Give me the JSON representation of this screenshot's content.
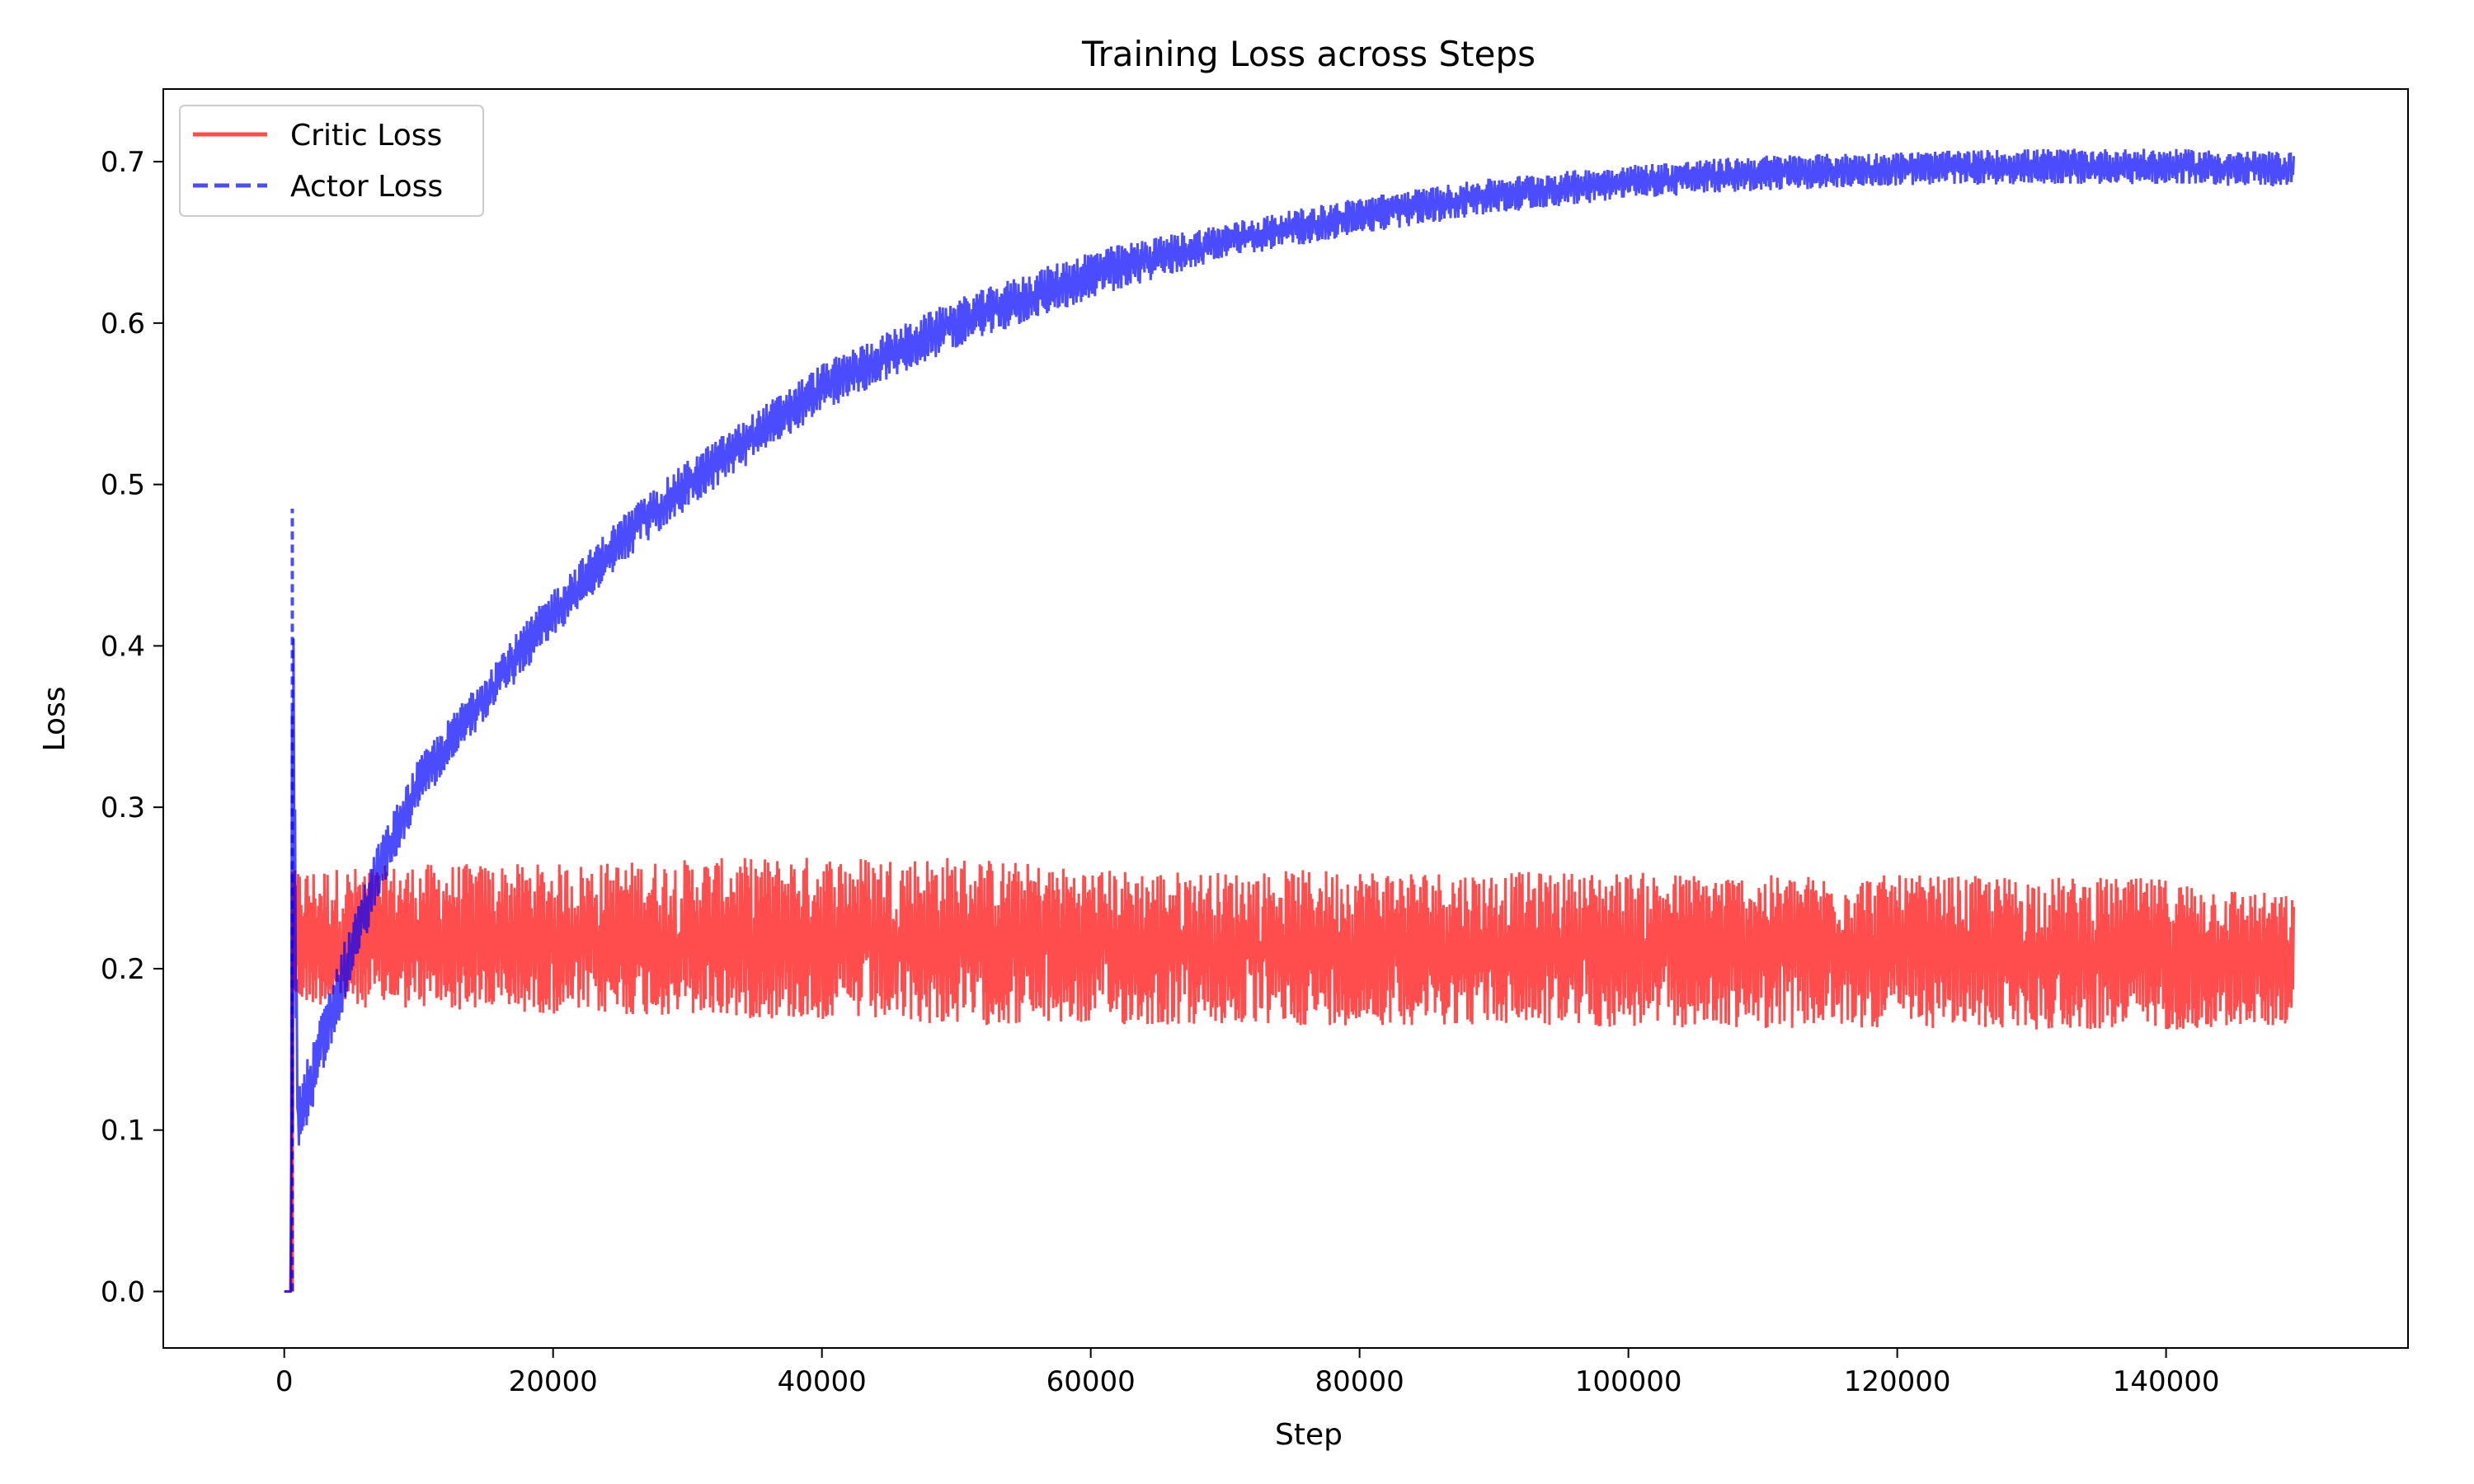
{
  "chart_data": {
    "type": "line",
    "title": "Training Loss across Steps",
    "xlabel": "Step",
    "ylabel": "Loss",
    "xlim": [
      -9000,
      158000
    ],
    "ylim": [
      -0.035,
      0.745
    ],
    "xticks": [
      0,
      20000,
      40000,
      60000,
      80000,
      100000,
      120000,
      140000
    ],
    "xtick_labels": [
      "0",
      "20000",
      "40000",
      "60000",
      "80000",
      "100000",
      "120000",
      "140000"
    ],
    "yticks": [
      0.0,
      0.1,
      0.2,
      0.3,
      0.4,
      0.5,
      0.6,
      0.7
    ],
    "ytick_labels": [
      "0.0",
      "0.1",
      "0.2",
      "0.3",
      "0.4",
      "0.5",
      "0.6",
      "0.7"
    ],
    "grid": false,
    "legend_position": "top-left",
    "series": [
      {
        "name": "Critic Loss",
        "color": "#ff0000",
        "opacity": 0.7,
        "style": "solid",
        "x": [
          0,
          500,
          600,
          1000,
          5000,
          10000,
          20000,
          30000,
          40000,
          50000,
          60000,
          70000,
          80000,
          90000,
          100000,
          110000,
          120000,
          130000,
          140000,
          149500
        ],
        "center": [
          0.0,
          0.0,
          0.21,
          0.215,
          0.215,
          0.216,
          0.215,
          0.217,
          0.216,
          0.215,
          0.214,
          0.213,
          0.213,
          0.212,
          0.212,
          0.211,
          0.211,
          0.21,
          0.21,
          0.205
        ],
        "low": [
          0.0,
          0.0,
          0.18,
          0.178,
          0.176,
          0.175,
          0.172,
          0.17,
          0.168,
          0.165,
          0.165,
          0.164,
          0.165,
          0.165,
          0.163,
          0.163,
          0.163,
          0.162,
          0.162,
          0.165
        ],
        "high": [
          0.0,
          0.0,
          0.26,
          0.262,
          0.263,
          0.265,
          0.265,
          0.268,
          0.27,
          0.27,
          0.262,
          0.26,
          0.262,
          0.26,
          0.26,
          0.258,
          0.258,
          0.257,
          0.256,
          0.245
        ]
      },
      {
        "name": "Actor Loss",
        "color": "#0000ff",
        "opacity": 0.7,
        "style": "dashed",
        "x": [
          0,
          500,
          600,
          1000,
          2000,
          3000,
          5000,
          7000,
          10000,
          15000,
          20000,
          25000,
          30000,
          40000,
          50000,
          60000,
          70000,
          80000,
          90000,
          100000,
          110000,
          120000,
          130000,
          140000,
          149500
        ],
        "center": [
          0.0,
          0.0,
          0.48,
          0.1,
          0.13,
          0.16,
          0.21,
          0.26,
          0.315,
          0.37,
          0.42,
          0.465,
          0.5,
          0.56,
          0.6,
          0.63,
          0.65,
          0.667,
          0.68,
          0.688,
          0.693,
          0.696,
          0.697,
          0.697,
          0.695
        ],
        "low": [
          0.0,
          0.0,
          0.09,
          0.085,
          0.11,
          0.14,
          0.19,
          0.245,
          0.3,
          0.355,
          0.405,
          0.45,
          0.485,
          0.545,
          0.585,
          0.615,
          0.64,
          0.655,
          0.668,
          0.677,
          0.682,
          0.685,
          0.686,
          0.686,
          0.684
        ],
        "high": [
          0.0,
          0.0,
          0.485,
          0.13,
          0.15,
          0.18,
          0.23,
          0.278,
          0.33,
          0.385,
          0.435,
          0.48,
          0.515,
          0.575,
          0.615,
          0.645,
          0.662,
          0.678,
          0.69,
          0.698,
          0.704,
          0.706,
          0.708,
          0.708,
          0.706
        ]
      }
    ]
  }
}
